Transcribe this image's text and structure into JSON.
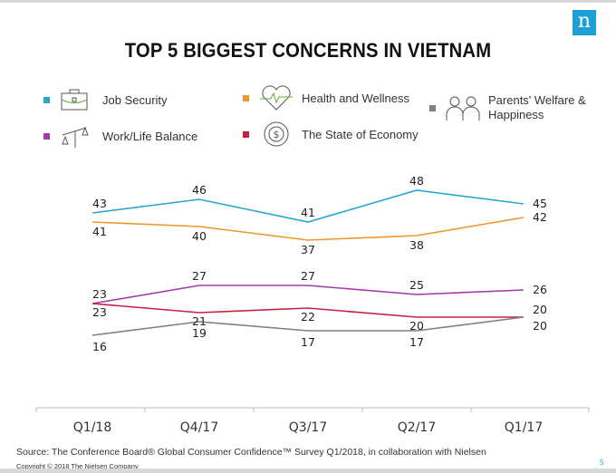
{
  "title": "TOP 5 BIGGEST CONCERNS IN VIETNAM",
  "logo": "n",
  "colors": {
    "Job Security": "#29a8c9",
    "Health and Wellness": "#f0962e",
    "Parents' Welfare & Happiness": "#808080",
    "Work/Life Balance": "#a63aa8",
    "The State of Economy": "#c8203f"
  },
  "legend": [
    {
      "label": "Job Security",
      "icon": "briefcase-icon",
      "color": "#29a8c9"
    },
    {
      "label": "Health and Wellness",
      "icon": "heart-pulse-icon",
      "color": "#f0962e"
    },
    {
      "label": "Parents' Welfare & Happiness",
      "icon": "elderly-couple-icon",
      "color": "#808080"
    },
    {
      "label": "Work/Life Balance",
      "icon": "scale-icon",
      "color": "#a63aa8"
    },
    {
      "label": "The State of Economy",
      "icon": "dollar-cycle-icon",
      "color": "#c8203f"
    }
  ],
  "chart_data": {
    "type": "line",
    "title": "TOP 5 BIGGEST CONCERNS IN VIETNAM",
    "categories": [
      "Q1/18",
      "Q4/17",
      "Q3/17",
      "Q2/17",
      "Q1/17"
    ],
    "series": [
      {
        "name": "Job Security",
        "values": [
          43,
          46,
          41,
          48,
          45
        ],
        "color": "#29a8c9"
      },
      {
        "name": "Health and Wellness",
        "values": [
          41,
          40,
          37,
          38,
          42
        ],
        "color": "#f0962e"
      },
      {
        "name": "Work/Life Balance",
        "values": [
          23,
          27,
          27,
          25,
          26
        ],
        "color": "#a63aa8"
      },
      {
        "name": "The State of Economy",
        "values": [
          23,
          21,
          22,
          20,
          20
        ],
        "color": "#c8203f"
      },
      {
        "name": "Parents' Welfare & Happiness",
        "values": [
          16,
          19,
          17,
          17,
          20
        ],
        "color": "#808080"
      }
    ],
    "ylim": [
      0,
      50
    ],
    "grid": false,
    "legend_position": "top"
  },
  "footer": {
    "source": "Source: The Conference Board® Global Consumer Confidence™ Survey Q1/2018, in collaboration with Nielsen",
    "copyright": "Copyright © 2018 The Nielsen Company",
    "page": "5"
  }
}
